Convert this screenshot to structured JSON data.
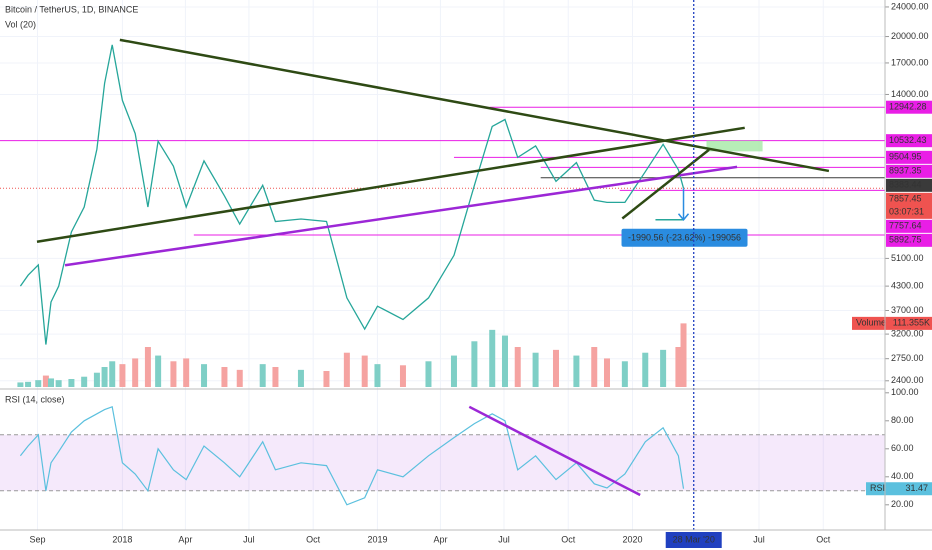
{
  "chart_data": [
    {
      "type": "line",
      "title": "Bitcoin / TetherUS, 1D, BINANCE",
      "subtitle": "Vol (20)",
      "log_scale": true,
      "grid": true,
      "x": [
        2017.6,
        2017.63,
        2017.67,
        2017.7,
        2017.72,
        2017.75,
        2017.8,
        2017.85,
        2017.9,
        2017.93,
        2017.96,
        2018.0,
        2018.05,
        2018.1,
        2018.14,
        2018.2,
        2018.25,
        2018.32,
        2018.4,
        2018.46,
        2018.55,
        2018.6,
        2018.7,
        2018.8,
        2018.88,
        2018.95,
        2019.0,
        2019.1,
        2019.2,
        2019.3,
        2019.38,
        2019.45,
        2019.5,
        2019.55,
        2019.62,
        2019.7,
        2019.78,
        2019.85,
        2019.9,
        2019.97,
        2020.05,
        2020.12,
        2020.18,
        2020.2
      ],
      "xlim": [
        2017.52,
        2020.99
      ],
      "ylim": [
        2310,
        25050
      ],
      "yticks": [
        {
          "value": 24000,
          "label": "24000.00"
        },
        {
          "value": 20000,
          "label": "20000.00"
        },
        {
          "value": 17000,
          "label": "17000.00"
        },
        {
          "value": 14000,
          "label": "14000.00"
        },
        {
          "value": 5100,
          "label": "5100.00"
        },
        {
          "value": 4300,
          "label": "4300.00"
        },
        {
          "value": 3700,
          "label": "3700.00"
        },
        {
          "value": 3200,
          "label": "3200.00"
        },
        {
          "value": 2750,
          "label": "2750.00"
        },
        {
          "value": 2400,
          "label": "2400.00"
        }
      ],
      "y2lim": [
        0,
        350000
      ],
      "series": [
        {
          "color": "#26a69a",
          "values": [
            4300,
            4600,
            4900,
            3000,
            3900,
            4300,
            6000,
            7000,
            10000,
            15000,
            19000,
            13500,
            11000,
            7000,
            10500,
            9000,
            7000,
            9300,
            7500,
            6300,
            8000,
            6400,
            6500,
            6400,
            4000,
            3300,
            3800,
            3500,
            4000,
            5200,
            8000,
            11500,
            12000,
            9500,
            10200,
            8200,
            9200,
            7300,
            7200,
            7200,
            8700,
            10300,
            8800,
            7857.45
          ]
        },
        {
          "name": "Volume",
          "axis": "y2",
          "up_color": "#7fcfc6",
          "down_color": "#f5a3a1",
          "label_color": "#ef5350",
          "values": [
            8000,
            9000,
            12000,
            20000,
            15000,
            12000,
            14000,
            18000,
            25000,
            35000,
            45000,
            40000,
            50000,
            70000,
            55000,
            45000,
            50000,
            40000,
            35000,
            30000,
            40000,
            35000,
            30000,
            28000,
            60000,
            55000,
            40000,
            38000,
            45000,
            55000,
            80000,
            100000,
            90000,
            70000,
            60000,
            65000,
            55000,
            70000,
            50000,
            45000,
            60000,
            65000,
            70000,
            111355
          ],
          "value_labels": [
            null,
            null,
            null,
            null,
            null,
            null,
            null,
            null,
            null,
            null,
            null,
            null,
            null,
            null,
            null,
            null,
            null,
            null,
            null,
            null,
            null,
            null,
            null,
            null,
            null,
            null,
            null,
            null,
            null,
            null,
            null,
            null,
            null,
            null,
            null,
            null,
            null,
            null,
            null,
            null,
            null,
            null,
            null,
            "111.355K"
          ]
        }
      ],
      "levels": [
        {
          "price": 12942.28,
          "from": 2019.44,
          "color": "#e91ee6"
        },
        {
          "price": 10532.43,
          "from": 2017.52,
          "color": "#e91ee6"
        },
        {
          "price": 9504.95,
          "from": 2019.3,
          "color": "#e91ee6"
        },
        {
          "price": 8937.35,
          "from": 2019.64,
          "color": "#e91ee6"
        },
        {
          "price": 8383.44,
          "from": 2019.64,
          "color": "#3a3a3a"
        },
        {
          "price": 7757.64,
          "from": 2019.95,
          "color": "#e91ee6"
        },
        {
          "price": 5892.75,
          "from": 2018.28,
          "color": "#e91ee6"
        }
      ],
      "last_price": 7857.45,
      "last_color": "#ef5350",
      "countdown": "03:07:31",
      "trendlines": [
        {
          "color": "#2e4a14",
          "points": [
            [
              2017.99,
              19600
            ],
            [
              2020.77,
              8740
            ]
          ]
        },
        {
          "color": "#2e4a14",
          "points": [
            [
              2017.665,
              5650
            ],
            [
              2020.44,
              11400
            ]
          ]
        },
        {
          "color": "#9c27d6",
          "points": [
            [
              2017.775,
              4890
            ],
            [
              2020.41,
              8960
            ]
          ]
        },
        {
          "color": "#2e4a14",
          "points": [
            [
              2019.96,
              6520
            ],
            [
              2020.3,
              9960
            ]
          ]
        }
      ],
      "zones": [
        {
          "x": [
            2020.29,
            2020.51
          ],
          "y": [
            9860,
            10532.43
          ],
          "color": "#a5e8a5"
        }
      ],
      "measure": {
        "label": "-1990.56 (-23.62%) -199056",
        "color": "#2a8ce0",
        "x": 2020.2,
        "from_x": 2020.09,
        "y": [
          7857.45,
          6470
        ]
      }
    },
    {
      "type": "line",
      "title": "RSI (14, close)",
      "x": [
        2017.6,
        2017.63,
        2017.67,
        2017.7,
        2017.72,
        2017.75,
        2017.8,
        2017.85,
        2017.9,
        2017.93,
        2017.96,
        2018.0,
        2018.05,
        2018.1,
        2018.14,
        2018.2,
        2018.25,
        2018.32,
        2018.4,
        2018.46,
        2018.55,
        2018.6,
        2018.7,
        2018.8,
        2018.88,
        2018.95,
        2019.0,
        2019.1,
        2019.2,
        2019.3,
        2019.38,
        2019.45,
        2019.5,
        2019.55,
        2019.62,
        2019.7,
        2019.78,
        2019.85,
        2019.9,
        2019.97,
        2020.05,
        2020.12,
        2020.18,
        2020.2
      ],
      "xlim": [
        2017.52,
        2020.99
      ],
      "xticks": [
        {
          "value": 2017.667,
          "label": "Sep"
        },
        2018,
        {
          "value": 2018.247,
          "label": "Apr"
        },
        {
          "value": 2018.496,
          "label": "Jul"
        },
        {
          "value": 2018.748,
          "label": "Oct"
        },
        2019,
        {
          "value": 2019.247,
          "label": "Apr"
        },
        {
          "value": 2019.496,
          "label": "Jul"
        },
        {
          "value": 2019.748,
          "label": "Oct"
        },
        2020,
        {
          "value": 2020.496,
          "label": "Jul"
        },
        {
          "value": 2020.748,
          "label": "Oct"
        }
      ],
      "ylim": [
        2,
        102
      ],
      "yticks": [
        {
          "value": 100,
          "label": "100.00"
        },
        {
          "value": 80,
          "label": "80.00"
        },
        {
          "value": 60,
          "label": "60.00"
        },
        {
          "value": 40,
          "label": "40.00"
        },
        {
          "value": 20,
          "label": "20.00"
        }
      ],
      "band": [
        30,
        70
      ],
      "band_color": "#9c27d6",
      "series": [
        {
          "name": "RSI",
          "color": "#5bc0de",
          "values": [
            55,
            62,
            70,
            30,
            50,
            58,
            72,
            80,
            85,
            88,
            90,
            50,
            42,
            30,
            60,
            45,
            38,
            62,
            50,
            40,
            65,
            45,
            50,
            48,
            20,
            25,
            45,
            40,
            55,
            68,
            78,
            85,
            80,
            45,
            55,
            38,
            50,
            35,
            32,
            42,
            65,
            75,
            55,
            31.47
          ]
        }
      ],
      "trendlines": [
        {
          "color": "#9c27d6",
          "points": [
            [
              2019.36,
              90
            ],
            [
              2020.03,
              27
            ]
          ]
        }
      ],
      "cursor": {
        "x": 2020.24,
        "label": "28 Mar '20",
        "color": "#2040c0"
      }
    }
  ]
}
